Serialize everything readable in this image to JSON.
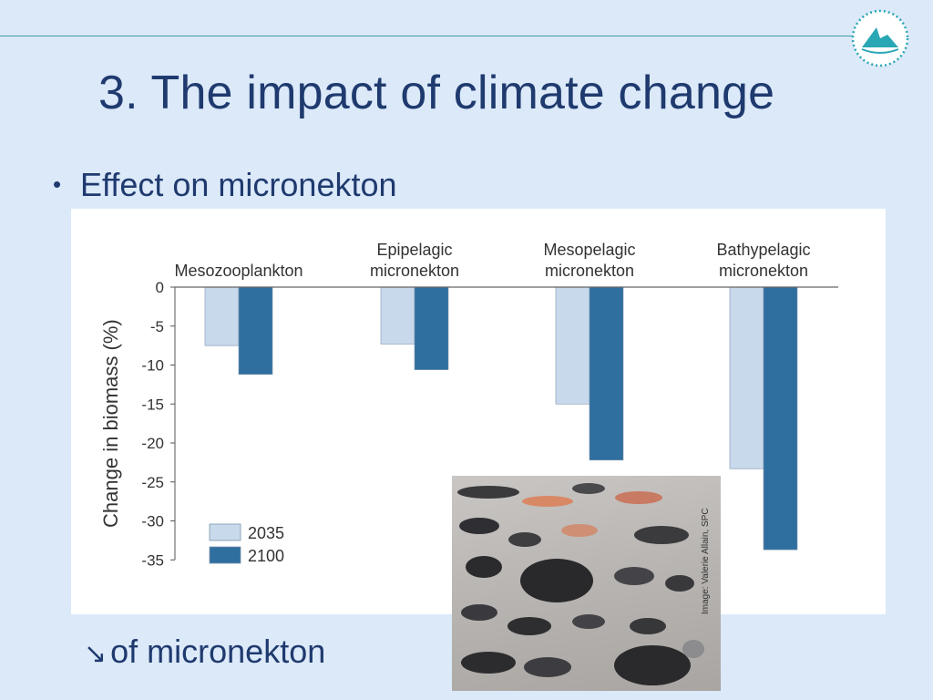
{
  "slide": {
    "title": "3. The impact of climate change",
    "bullet": "Effect on micronekton",
    "bullet_marker": "•",
    "footer_arrow": "↘",
    "footer_text": "of micronekton",
    "logo_icon": "organisation-logo-icon"
  },
  "photo": {
    "credit": "Image: Valerie Allain, SPC"
  },
  "chart_data": {
    "type": "bar",
    "ylabel": "Change in biomass (%)",
    "ylim": [
      -35,
      0
    ],
    "yticks": [
      0,
      -5,
      -10,
      -15,
      -20,
      -25,
      -30,
      -35
    ],
    "grid": false,
    "legend_placement": "bottom-left",
    "categories": [
      "Mesozooplankton",
      "Epipelagic micronekton",
      "Mesopelagic micronekton",
      "Bathypelagic micronekton"
    ],
    "category_label_lines": [
      [
        "Mesozooplankton"
      ],
      [
        "Epipelagic",
        "micronekton"
      ],
      [
        "Mesopelagic",
        "micronekton"
      ],
      [
        "Bathypelagic",
        "micronekton"
      ]
    ],
    "series": [
      {
        "name": "2035",
        "color": "#c9d9ec",
        "values": [
          -7.5,
          -7.3,
          -15.0,
          -23.3
        ]
      },
      {
        "name": "2100",
        "color": "#2f6f9f",
        "values": [
          -11.2,
          -10.6,
          -22.2,
          -33.7
        ]
      }
    ]
  }
}
